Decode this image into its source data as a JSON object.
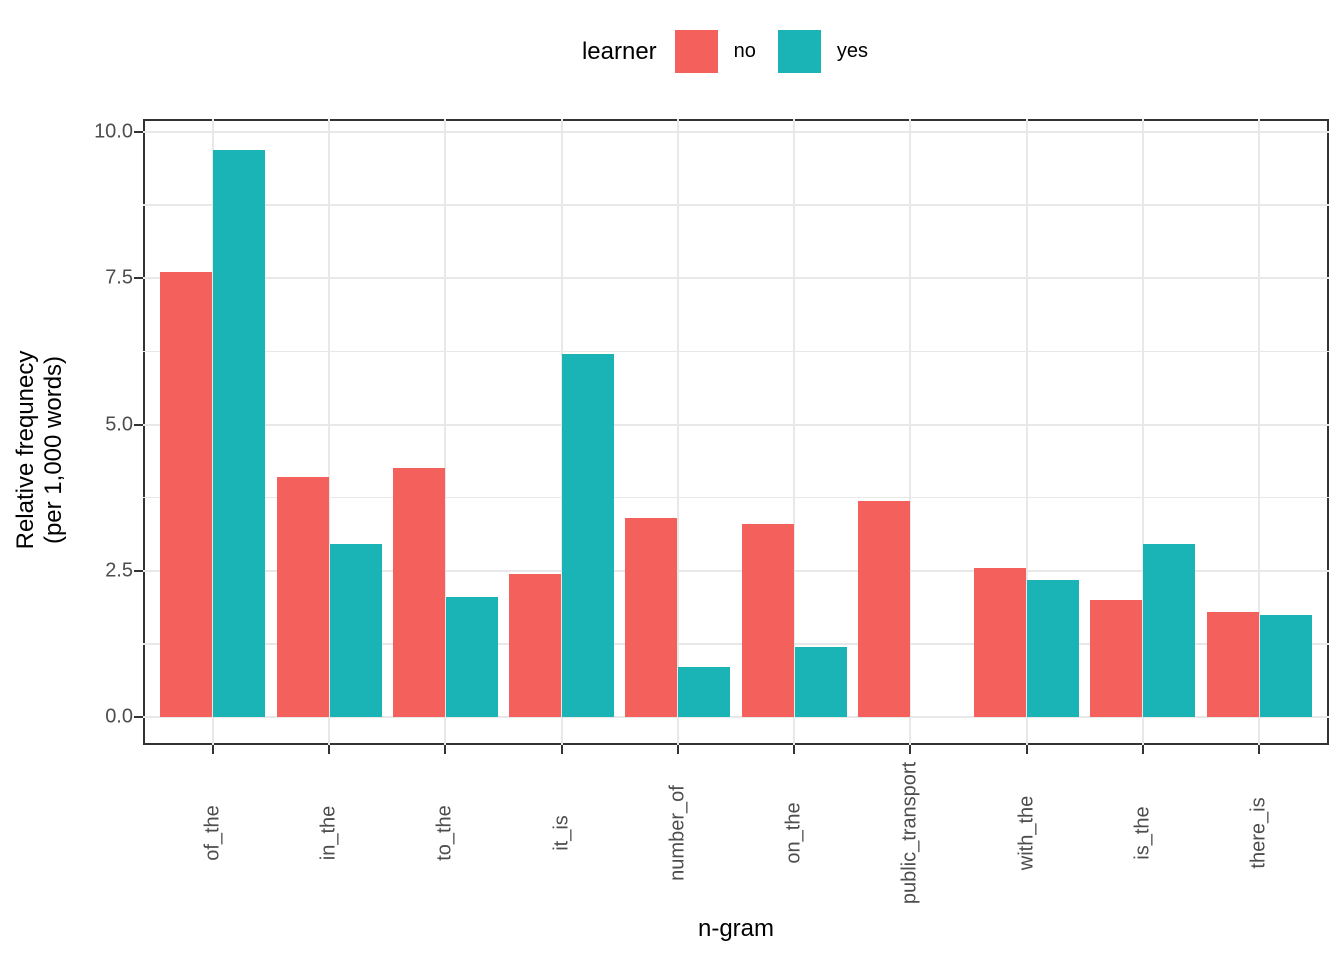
{
  "legend": {
    "title": "learner",
    "items": [
      {
        "label": "no",
        "color": "#F4605C"
      },
      {
        "label": "yes",
        "color": "#1AB3B6"
      }
    ]
  },
  "chart_data": {
    "type": "bar",
    "title": "",
    "xlabel": "n-gram",
    "ylabel_lines": [
      "Relative frequnecy",
      "(per 1,000 words)"
    ],
    "legend_title": "learner",
    "legend_position": "top",
    "grid": true,
    "categories": [
      "of_the",
      "in_the",
      "to_the",
      "it_is",
      "number_of",
      "on_the",
      "public_transport",
      "with_the",
      "is_the",
      "there_is"
    ],
    "series": [
      {
        "name": "no",
        "color": "#F4605C",
        "values": [
          7.6,
          4.1,
          4.25,
          2.45,
          3.4,
          3.3,
          3.7,
          2.55,
          2.0,
          1.8
        ]
      },
      {
        "name": "yes",
        "color": "#1AB3B6",
        "values": [
          9.7,
          2.95,
          2.05,
          6.2,
          0.85,
          1.2,
          null,
          2.35,
          2.95,
          1.75
        ]
      }
    ],
    "ylim": [
      0,
      10.2
    ],
    "y_major_ticks": [
      0,
      2.5,
      5,
      7.5,
      10
    ],
    "y_minor_ticks": [
      1.25,
      3.75,
      6.25,
      8.75
    ],
    "y_tick_labels": [
      "0.0",
      "2.5",
      "5.0",
      "7.5",
      "10.0"
    ]
  },
  "colors": {
    "grid": "#E8E8E8",
    "panel_border": "#333333",
    "tick": "#333333",
    "tick_label": "#4D4D4D",
    "axis_title": "#000000",
    "background": "#FFFFFF"
  }
}
